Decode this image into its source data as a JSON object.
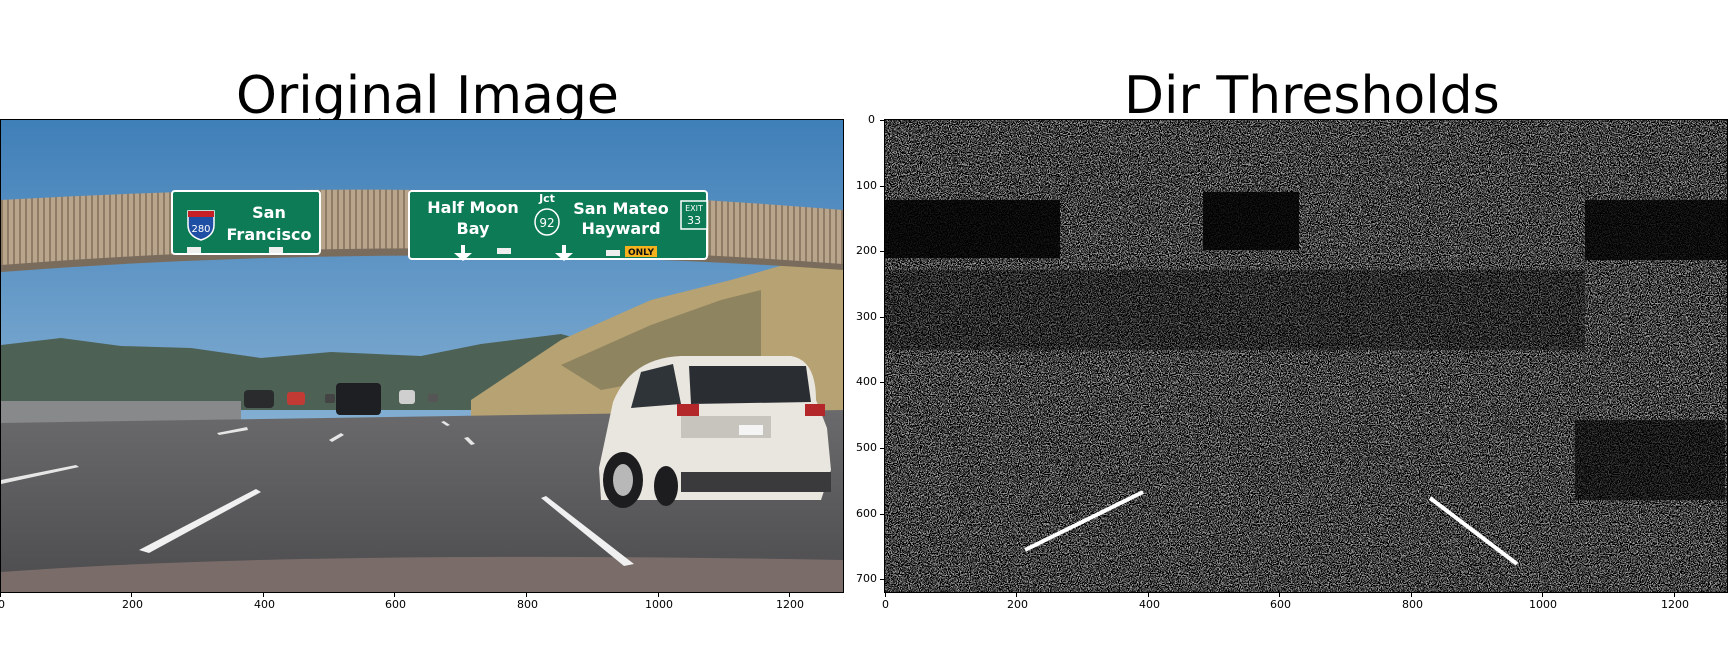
{
  "panels": [
    {
      "title": "Original Image",
      "x_ticks": [
        "0",
        "200",
        "400",
        "600",
        "800",
        "1000",
        "1200"
      ],
      "y_ticks": [],
      "signs": [
        {
          "shield": "280",
          "lines": [
            "San",
            "Francisco"
          ]
        },
        {
          "lines": [
            "Half Moon",
            "Bay"
          ],
          "mid": "Jct",
          "route": "92",
          "lines2": [
            "San Mateo",
            "Hayward"
          ],
          "exit": [
            "EXIT",
            "33"
          ],
          "only": "ONLY"
        }
      ]
    },
    {
      "title": "Dir Thresholds",
      "x_ticks": [
        "0",
        "200",
        "400",
        "600",
        "800",
        "1000",
        "1200"
      ],
      "y_ticks": [
        "0",
        "100",
        "200",
        "300",
        "400",
        "500",
        "600",
        "700"
      ]
    }
  ]
}
